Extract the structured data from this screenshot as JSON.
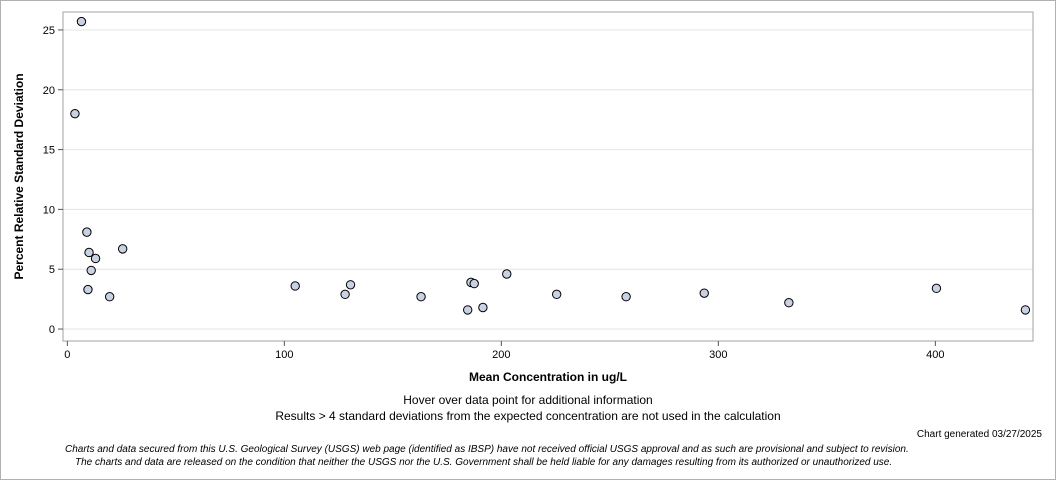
{
  "chart_data": {
    "type": "scatter",
    "xlabel": "Mean Concentration in ug/L",
    "ylabel": "Percent Relative Standard Deviation",
    "xlim": [
      -2,
      445
    ],
    "ylim": [
      -1,
      26.5
    ],
    "xticks": [
      0,
      100,
      200,
      300,
      400
    ],
    "yticks": [
      0,
      5,
      10,
      15,
      20,
      25
    ],
    "grid": "horizontal",
    "marker_color": "#c8d2e4",
    "marker_edge": "#000000",
    "points": [
      {
        "x": 6.5,
        "y": 25.7
      },
      {
        "x": 3.5,
        "y": 18.0
      },
      {
        "x": 9.0,
        "y": 8.1
      },
      {
        "x": 10.0,
        "y": 6.4
      },
      {
        "x": 13.0,
        "y": 5.9
      },
      {
        "x": 11.0,
        "y": 4.9
      },
      {
        "x": 9.5,
        "y": 3.3
      },
      {
        "x": 19.5,
        "y": 2.7
      },
      {
        "x": 25.5,
        "y": 6.7
      },
      {
        "x": 105,
        "y": 3.6
      },
      {
        "x": 128,
        "y": 2.9
      },
      {
        "x": 130.5,
        "y": 3.7
      },
      {
        "x": 163,
        "y": 2.7
      },
      {
        "x": 184.5,
        "y": 1.6
      },
      {
        "x": 186,
        "y": 3.9
      },
      {
        "x": 187.5,
        "y": 3.8
      },
      {
        "x": 191.5,
        "y": 1.8
      },
      {
        "x": 202.5,
        "y": 4.6
      },
      {
        "x": 225.5,
        "y": 2.9
      },
      {
        "x": 257.5,
        "y": 2.7
      },
      {
        "x": 293.5,
        "y": 3.0
      },
      {
        "x": 332.5,
        "y": 2.2
      },
      {
        "x": 400.5,
        "y": 3.4
      },
      {
        "x": 441.5,
        "y": 1.6
      }
    ]
  },
  "notes": {
    "hover": "Hover over data point for additional information",
    "results": "Results > 4 standard deviations from the expected concentration are not used in the calculation",
    "generated": "Chart generated 03/27/2025",
    "disclaimer_line1": "Charts and data secured from this U.S. Geological Survey (USGS) web page (identified as IBSP) have not received official USGS approval and as such are provisional and subject to revision.",
    "disclaimer_line2": "The charts and data are released on the condition that neither the USGS nor the U.S. Government shall be held liable for any damages resulting from its authorized or unauthorized use."
  }
}
